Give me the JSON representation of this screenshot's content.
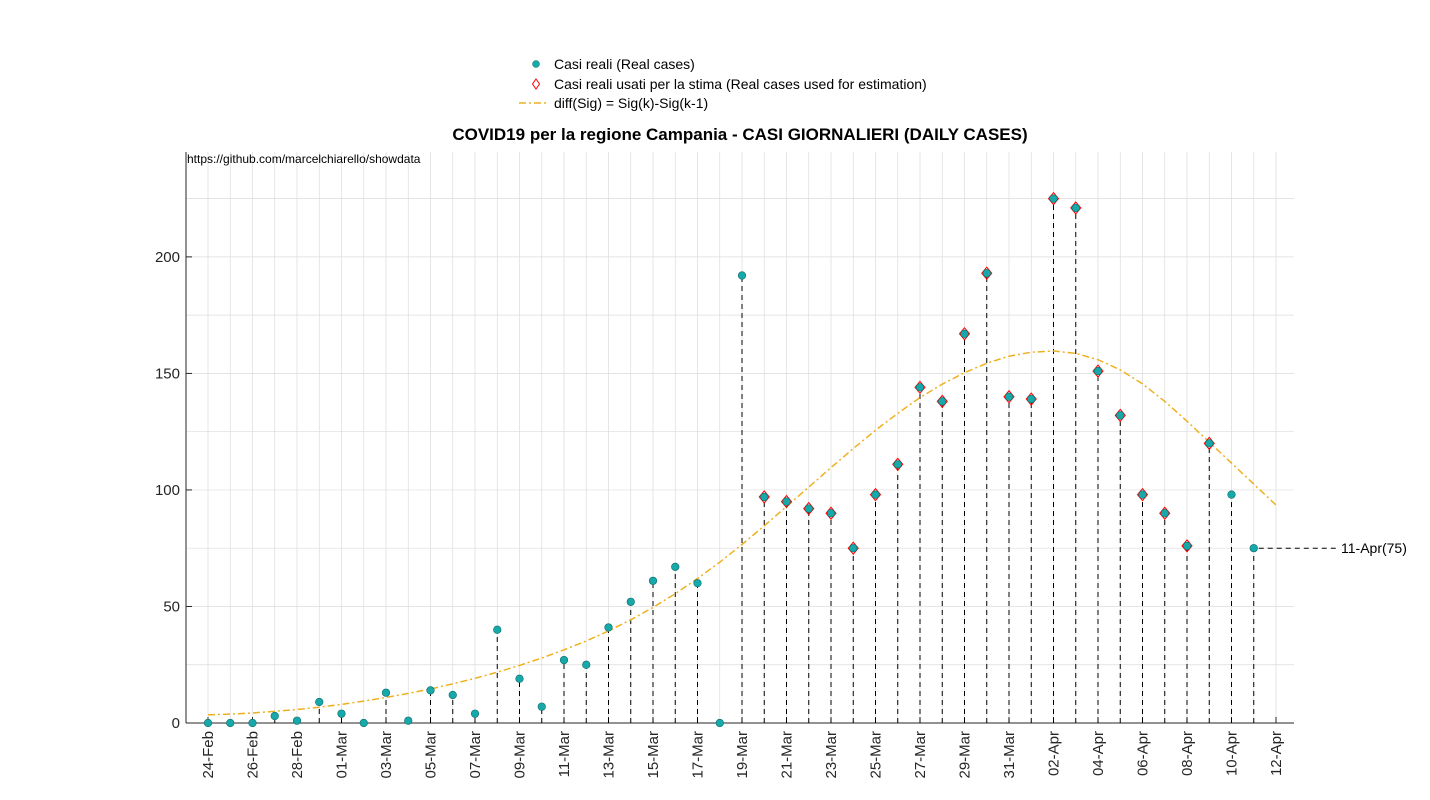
{
  "chart_data": {
    "type": "scatter",
    "title": "COVID19 per la regione Campania - CASI GIORNALIERI (DAILY CASES)",
    "source_text": "https://github.com/marcelchiarello/showdata",
    "xlabel": "",
    "ylabel": "",
    "ylim": [
      0,
      245
    ],
    "yticks": [
      0,
      50,
      100,
      150,
      200
    ],
    "grid": true,
    "legend_position": "top",
    "xticks": [
      "24-Feb",
      "26-Feb",
      "28-Feb",
      "01-Mar",
      "03-Mar",
      "05-Mar",
      "07-Mar",
      "09-Mar",
      "11-Mar",
      "13-Mar",
      "15-Mar",
      "17-Mar",
      "19-Mar",
      "21-Mar",
      "23-Mar",
      "25-Mar",
      "27-Mar",
      "29-Mar",
      "31-Mar",
      "02-Apr",
      "04-Apr",
      "06-Apr",
      "08-Apr",
      "10-Apr",
      "12-Apr"
    ],
    "dates": [
      "24-Feb",
      "25-Feb",
      "26-Feb",
      "27-Feb",
      "28-Feb",
      "29-Feb",
      "01-Mar",
      "02-Mar",
      "03-Mar",
      "04-Mar",
      "05-Mar",
      "06-Mar",
      "07-Mar",
      "08-Mar",
      "09-Mar",
      "10-Mar",
      "11-Mar",
      "12-Mar",
      "13-Mar",
      "14-Mar",
      "15-Mar",
      "16-Mar",
      "17-Mar",
      "18-Mar",
      "19-Mar",
      "20-Mar",
      "21-Mar",
      "22-Mar",
      "23-Mar",
      "24-Mar",
      "25-Mar",
      "26-Mar",
      "27-Mar",
      "28-Mar",
      "29-Mar",
      "30-Mar",
      "31-Mar",
      "01-Apr",
      "02-Apr",
      "03-Apr",
      "04-Apr",
      "05-Apr",
      "06-Apr",
      "07-Apr",
      "08-Apr",
      "09-Apr",
      "10-Apr",
      "11-Apr",
      "12-Apr"
    ],
    "series": [
      {
        "name": "Casi reali (Real cases)",
        "color": "#17a9a9",
        "values": [
          0,
          0,
          0,
          3,
          1,
          9,
          4,
          0,
          13,
          1,
          14,
          12,
          4,
          40,
          19,
          7,
          27,
          25,
          41,
          52,
          61,
          67,
          60,
          0,
          192,
          97,
          95,
          92,
          90,
          75,
          98,
          111,
          144,
          138,
          167,
          193,
          140,
          139,
          225,
          221,
          151,
          132,
          98,
          90,
          76,
          120,
          98,
          75
        ]
      },
      {
        "name": "Casi reali usati per la stima (Real cases used for estimation)",
        "color": "#ff0000",
        "values": [
          null,
          null,
          null,
          null,
          null,
          null,
          null,
          null,
          null,
          null,
          null,
          null,
          null,
          null,
          null,
          null,
          null,
          null,
          null,
          null,
          null,
          null,
          null,
          null,
          null,
          97,
          95,
          92,
          90,
          75,
          98,
          111,
          144,
          138,
          167,
          193,
          140,
          139,
          225,
          221,
          151,
          132,
          98,
          90,
          76,
          120,
          null,
          null
        ]
      },
      {
        "name": "diff(Sig) = Sig(k)-Sig(k-1)",
        "color": "#edb120",
        "values": [
          3.5,
          3.8,
          4.3,
          5.0,
          5.8,
          6.8,
          8.0,
          9.4,
          11.0,
          12.7,
          14.6,
          16.8,
          19.2,
          21.8,
          24.7,
          27.9,
          31.4,
          35.2,
          39.5,
          44.3,
          49.6,
          55.5,
          62.0,
          69.0,
          76.6,
          84.6,
          92.9,
          101.2,
          109.6,
          117.8,
          125.6,
          132.9,
          139.6,
          145.4,
          150.3,
          154.4,
          157.4,
          159.1,
          159.6,
          158.6,
          155.9,
          151.5,
          145.5,
          138.0,
          129.5,
          120.5,
          111.5,
          102.5,
          93.5
        ]
      }
    ],
    "annotation": "11-Apr(75)"
  },
  "colors": {
    "real": "#17a9a9",
    "estimation": "#ff0000",
    "curve": "#edb120",
    "grid": "#dcdcdc",
    "axis": "#262626"
  }
}
